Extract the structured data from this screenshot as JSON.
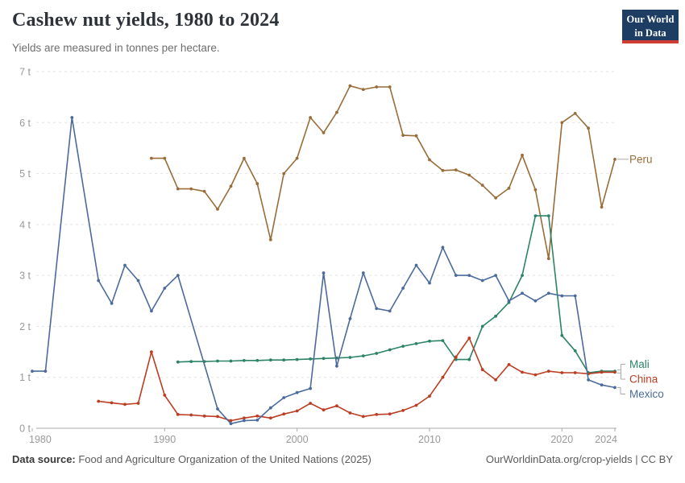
{
  "header": {
    "title": "Cashew nut yields, 1980 to 2024",
    "subtitle": "Yields are measured in tonnes per hectare.",
    "logo_line1": "Our World",
    "logo_line2": "in Data"
  },
  "footer": {
    "source_label": "Data source:",
    "source_text": " Food and Agriculture Organization of the United Nations (2025)",
    "link_text": "OurWorldinData.org/crop-yields | CC BY"
  },
  "colors": {
    "peru": "#996D39",
    "mali": "#2C8465",
    "china": "#BC3D22",
    "mexico": "#4C6A9C",
    "grid": "#e2e2e2",
    "axis": "#a8a8a8",
    "tick_text": "#999999",
    "connector": "#aaaaaa"
  },
  "chart_data": {
    "type": "line",
    "title": "Cashew nut yields, 1980 to 2024",
    "unit_suffix": " t",
    "ylabel": "tonnes per hectare",
    "xlim": [
      1980,
      2024
    ],
    "ylim": [
      0,
      7
    ],
    "x_ticks": [
      1980,
      1990,
      2000,
      2010,
      2020,
      2024
    ],
    "y_ticks": [
      0,
      1,
      2,
      3,
      4,
      5,
      6,
      7
    ],
    "grid": "horizontal-dashed",
    "legend_position": "right-end-labels",
    "series": [
      {
        "name": "Peru",
        "color": "#996D39",
        "points": [
          [
            1989,
            5.3
          ],
          [
            1990,
            5.3
          ],
          [
            1991,
            4.7
          ],
          [
            1992,
            4.7
          ],
          [
            1993,
            4.65
          ],
          [
            1994,
            4.3
          ],
          [
            1995,
            4.75
          ],
          [
            1996,
            5.3
          ],
          [
            1997,
            4.8
          ],
          [
            1998,
            3.7
          ],
          [
            1999,
            5.0
          ],
          [
            2000,
            5.3
          ],
          [
            2001,
            6.1
          ],
          [
            2002,
            5.8
          ],
          [
            2003,
            6.2
          ],
          [
            2004,
            6.72
          ],
          [
            2005,
            6.65
          ],
          [
            2006,
            6.7
          ],
          [
            2007,
            6.7
          ],
          [
            2008,
            5.75
          ],
          [
            2009,
            5.74
          ],
          [
            2010,
            5.27
          ],
          [
            2011,
            5.06
          ],
          [
            2012,
            5.07
          ],
          [
            2013,
            4.97
          ],
          [
            2014,
            4.77
          ],
          [
            2015,
            4.52
          ],
          [
            2016,
            4.71
          ],
          [
            2017,
            5.36
          ],
          [
            2018,
            4.68
          ],
          [
            2019,
            3.33
          ],
          [
            2020,
            6.0
          ],
          [
            2021,
            6.18
          ],
          [
            2022,
            5.89
          ],
          [
            2023,
            4.34
          ],
          [
            2024,
            5.28
          ]
        ]
      },
      {
        "name": "Mali",
        "color": "#2C8465",
        "points": [
          [
            1991,
            1.3
          ],
          [
            1992,
            1.31
          ],
          [
            1993,
            1.31
          ],
          [
            1994,
            1.32
          ],
          [
            1995,
            1.32
          ],
          [
            1996,
            1.33
          ],
          [
            1997,
            1.33
          ],
          [
            1998,
            1.34
          ],
          [
            1999,
            1.34
          ],
          [
            2000,
            1.35
          ],
          [
            2001,
            1.36
          ],
          [
            2002,
            1.37
          ],
          [
            2003,
            1.38
          ],
          [
            2004,
            1.39
          ],
          [
            2005,
            1.42
          ],
          [
            2006,
            1.47
          ],
          [
            2007,
            1.54
          ],
          [
            2008,
            1.61
          ],
          [
            2009,
            1.66
          ],
          [
            2010,
            1.71
          ],
          [
            2011,
            1.72
          ],
          [
            2012,
            1.35
          ],
          [
            2013,
            1.35
          ],
          [
            2014,
            2.0
          ],
          [
            2015,
            2.2
          ],
          [
            2016,
            2.47
          ],
          [
            2017,
            3.0
          ],
          [
            2018,
            4.17
          ],
          [
            2019,
            4.17
          ],
          [
            2020,
            1.82
          ],
          [
            2021,
            1.52
          ],
          [
            2022,
            1.09
          ],
          [
            2023,
            1.12
          ],
          [
            2024,
            1.12
          ]
        ]
      },
      {
        "name": "China",
        "color": "#BC3D22",
        "points": [
          [
            1985,
            0.53
          ],
          [
            1986,
            0.5
          ],
          [
            1987,
            0.47
          ],
          [
            1988,
            0.49
          ],
          [
            1989,
            1.5
          ],
          [
            1990,
            0.65
          ],
          [
            1991,
            0.27
          ],
          [
            1992,
            0.26
          ],
          [
            1993,
            0.24
          ],
          [
            1994,
            0.23
          ],
          [
            1995,
            0.15
          ],
          [
            1996,
            0.2
          ],
          [
            1997,
            0.24
          ],
          [
            1998,
            0.2
          ],
          [
            1999,
            0.28
          ],
          [
            2000,
            0.34
          ],
          [
            2001,
            0.49
          ],
          [
            2002,
            0.36
          ],
          [
            2003,
            0.44
          ],
          [
            2004,
            0.3
          ],
          [
            2005,
            0.23
          ],
          [
            2006,
            0.27
          ],
          [
            2007,
            0.28
          ],
          [
            2008,
            0.35
          ],
          [
            2009,
            0.45
          ],
          [
            2010,
            0.63
          ],
          [
            2011,
            1.0
          ],
          [
            2012,
            1.4
          ],
          [
            2013,
            1.77
          ],
          [
            2014,
            1.15
          ],
          [
            2015,
            0.95
          ],
          [
            2016,
            1.25
          ],
          [
            2017,
            1.1
          ],
          [
            2018,
            1.05
          ],
          [
            2019,
            1.12
          ],
          [
            2020,
            1.09
          ],
          [
            2021,
            1.09
          ],
          [
            2022,
            1.07
          ],
          [
            2023,
            1.1
          ],
          [
            2024,
            1.1
          ]
        ]
      },
      {
        "name": "Mexico",
        "color": "#4C6A9C",
        "points": [
          [
            1980,
            1.12
          ],
          [
            1981,
            1.12
          ],
          [
            1983,
            6.1
          ],
          [
            1985,
            2.9
          ],
          [
            1986,
            2.45
          ],
          [
            1987,
            3.2
          ],
          [
            1988,
            2.9
          ],
          [
            1989,
            2.3
          ],
          [
            1990,
            2.75
          ],
          [
            1991,
            3.0
          ],
          [
            1994,
            0.38
          ],
          [
            1995,
            0.09
          ],
          [
            1996,
            0.15
          ],
          [
            1997,
            0.16
          ],
          [
            1998,
            0.4
          ],
          [
            1999,
            0.6
          ],
          [
            2000,
            0.7
          ],
          [
            2001,
            0.78
          ],
          [
            2002,
            3.05
          ],
          [
            2003,
            1.22
          ],
          [
            2004,
            2.15
          ],
          [
            2005,
            3.05
          ],
          [
            2006,
            2.35
          ],
          [
            2007,
            2.3
          ],
          [
            2008,
            2.75
          ],
          [
            2009,
            3.2
          ],
          [
            2010,
            2.85
          ],
          [
            2011,
            3.55
          ],
          [
            2012,
            3.0
          ],
          [
            2013,
            3.0
          ],
          [
            2014,
            2.9
          ],
          [
            2015,
            3.0
          ],
          [
            2016,
            2.5
          ],
          [
            2017,
            2.65
          ],
          [
            2018,
            2.5
          ],
          [
            2019,
            2.65
          ],
          [
            2020,
            2.6
          ],
          [
            2021,
            2.6
          ],
          [
            2022,
            0.95
          ],
          [
            2023,
            0.85
          ],
          [
            2024,
            0.8
          ]
        ]
      }
    ]
  }
}
